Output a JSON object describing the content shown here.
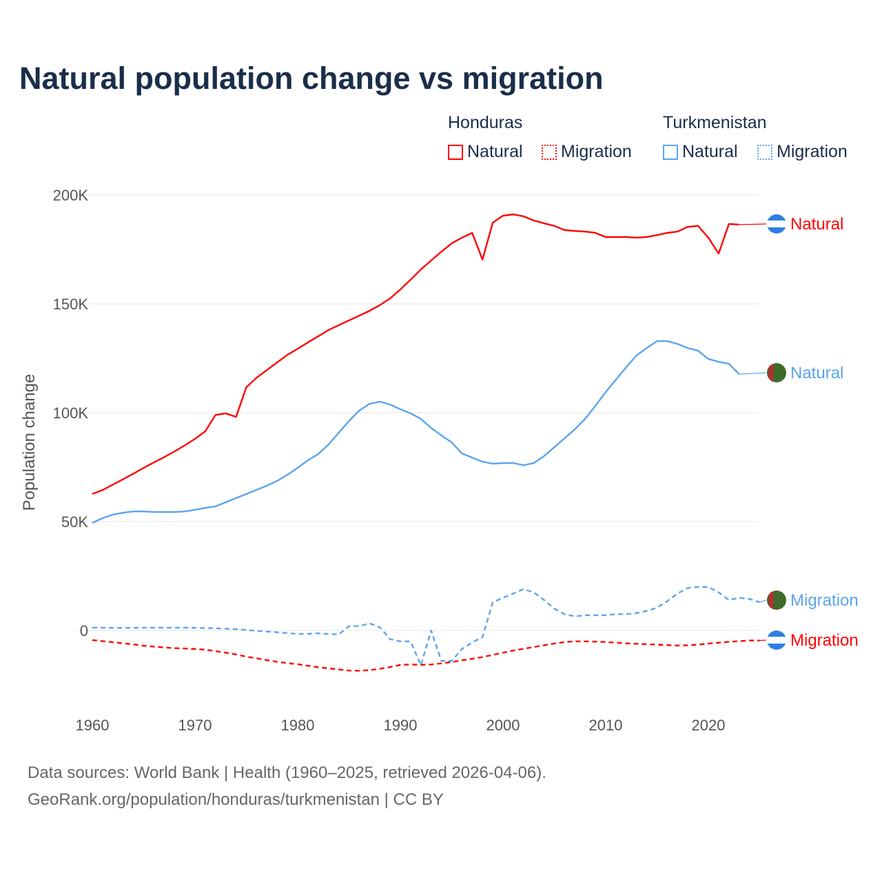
{
  "title": "Natural population change vs migration",
  "legend": {
    "groups": [
      {
        "name": "Honduras",
        "natural": "Natural",
        "migration": "Migration"
      },
      {
        "name": "Turkmenistan",
        "natural": "Natural",
        "migration": "Migration"
      }
    ]
  },
  "colors": {
    "honduras": "#ff0000",
    "turkmenistan": "#5ba4ee"
  },
  "footer": {
    "line1": "Data sources: World Bank | Health (1960–2025, retrieved 2026-04-06).",
    "line2": "GeoRank.org/population/honduras/turkmenistan | CC BY"
  },
  "chart_data": {
    "type": "line",
    "ylabel": "Population change",
    "xlim": [
      1960,
      2025
    ],
    "ylim": [
      -30000,
      200000
    ],
    "xticks": [
      {
        "v": 1960,
        "label": "1960"
      },
      {
        "v": 1970,
        "label": "1970"
      },
      {
        "v": 1980,
        "label": "1980"
      },
      {
        "v": 1990,
        "label": "1990"
      },
      {
        "v": 2000,
        "label": "2000"
      },
      {
        "v": 2010,
        "label": "2010"
      },
      {
        "v": 2020,
        "label": "2020"
      }
    ],
    "yticks": [
      {
        "v": 0,
        "label": "0"
      },
      {
        "v": 50000,
        "label": "50K"
      },
      {
        "v": 100000,
        "label": "100K"
      },
      {
        "v": 150000,
        "label": "150K"
      },
      {
        "v": 200000,
        "label": "200K"
      }
    ],
    "series": [
      {
        "name": "Honduras Natural",
        "label": "Natural",
        "country": "honduras",
        "dash": false,
        "start": 1960,
        "unit": 1000,
        "values": [
          62.7,
          64.5,
          67,
          69.5,
          72,
          74.7,
          77.2,
          79.6,
          82.2,
          85,
          88,
          91.5,
          99,
          99.7,
          98.1,
          111.7,
          116.1,
          119.6,
          123.1,
          126.6,
          129.4,
          132.3,
          135.1,
          138,
          140.2,
          142.4,
          144.6,
          146.8,
          149.4,
          152.5,
          156.6,
          161.1,
          165.8,
          169.9,
          174,
          177.8,
          180.4,
          182.6,
          170.3,
          187.3,
          190.5,
          191.1,
          190.2,
          188.3,
          187,
          185.8,
          183.9,
          183.5,
          183.2,
          182.6,
          180.7,
          180.7,
          180.7,
          180.4,
          180.7,
          181.6,
          182.6,
          183.2,
          185.4,
          185.8,
          180.4,
          173.1,
          186.7,
          186.4
        ]
      },
      {
        "name": "Turkmenistan Natural",
        "label": "Natural",
        "country": "turkmenistan",
        "dash": false,
        "start": 1960,
        "unit": 1000,
        "values": [
          49.4,
          51.6,
          53.2,
          54.1,
          54.7,
          54.7,
          54.4,
          54.4,
          54.4,
          54.7,
          55.4,
          56.3,
          57,
          58.9,
          60.8,
          62.7,
          64.6,
          66.5,
          68.7,
          71.5,
          74.7,
          78.2,
          81,
          85.4,
          90.8,
          96.2,
          101,
          104.1,
          105.1,
          103.8,
          101.6,
          99.7,
          97.2,
          93,
          89.6,
          86.4,
          81.3,
          79.4,
          77.5,
          76.6,
          76.9,
          76.9,
          75.9,
          76.9,
          80.1,
          84.2,
          88.3,
          92.4,
          97.2,
          103.2,
          109.5,
          115.2,
          120.9,
          126.3,
          129.7,
          132.9,
          132.9,
          131.6,
          129.7,
          128.5,
          124.7,
          123.4,
          122.5,
          117.7
        ]
      },
      {
        "name": "Turkmenistan Migration",
        "label": "Migration",
        "country": "turkmenistan",
        "dash": true,
        "start": 1960,
        "unit": 1000,
        "values": [
          1.3,
          1.3,
          1.2,
          1.2,
          1.2,
          1.3,
          1.3,
          1.3,
          1.3,
          1.3,
          1.2,
          1.1,
          1.0,
          0.8,
          0.6,
          0.2,
          -0.2,
          -0.5,
          -0.8,
          -1.2,
          -1.6,
          -1.5,
          -1.3,
          -1.6,
          -1.8,
          2.0,
          2.0,
          3.3,
          1.5,
          -4.0,
          -5.0,
          -5.0,
          -16.0,
          0,
          -14.0,
          -14.0,
          -8.5,
          -5.5,
          -3.0,
          13.0,
          15.0,
          17.0,
          19.0,
          17.5,
          14.0,
          10.0,
          7.5,
          6.5,
          7.0,
          7.0,
          7.0,
          7.5,
          7.5,
          8.0,
          9.0,
          10.5,
          13.5,
          17.0,
          19.5,
          20.0,
          20.0,
          17.5,
          14.0,
          15.0,
          14.5,
          13.0
        ]
      },
      {
        "name": "Honduras Migration",
        "label": "Migration",
        "country": "honduras",
        "dash": true,
        "start": 1960,
        "unit": 1000,
        "values": [
          -4.4,
          -4.9,
          -5.4,
          -5.9,
          -6.4,
          -7.0,
          -7.4,
          -7.8,
          -8.1,
          -8.3,
          -8.5,
          -8.8,
          -9.5,
          -10.2,
          -11.0,
          -12.0,
          -12.8,
          -13.6,
          -14.4,
          -15.0,
          -15.5,
          -16.2,
          -16.9,
          -17.4,
          -17.9,
          -18.4,
          -18.5,
          -18.2,
          -17.6,
          -16.8,
          -15.8,
          -15.6,
          -15.8,
          -15.6,
          -15.1,
          -14.5,
          -13.7,
          -13.0,
          -12.2,
          -11.2,
          -10.2,
          -9.2,
          -8.4,
          -7.6,
          -6.8,
          -6.0,
          -5.3,
          -5.0,
          -5.0,
          -5.1,
          -5.3,
          -5.6,
          -5.9,
          -6.1,
          -6.3,
          -6.5,
          -6.7,
          -6.9,
          -6.8,
          -6.5,
          -6.0,
          -5.6,
          -5.2,
          -4.9,
          -4.6,
          -4.6
        ]
      }
    ]
  }
}
